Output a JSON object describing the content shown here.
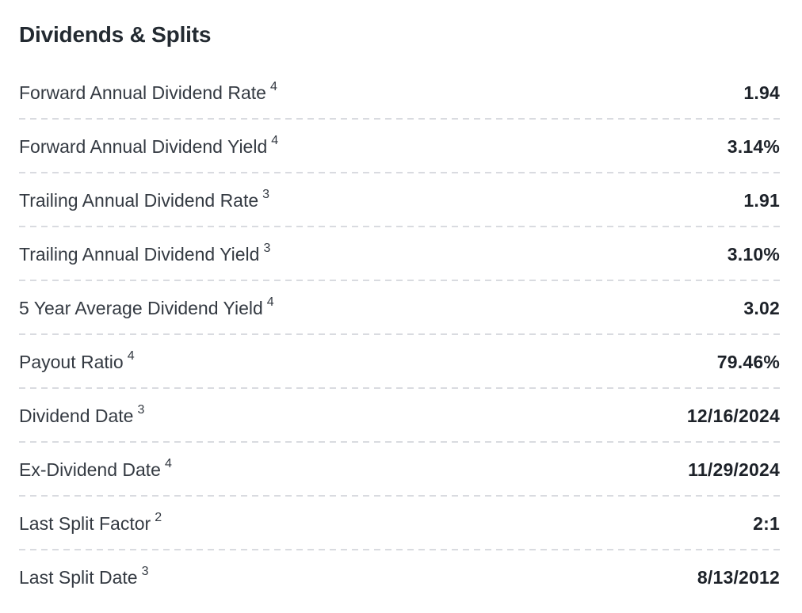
{
  "section": {
    "title": "Dividends & Splits",
    "rows": [
      {
        "label": "Forward Annual Dividend Rate",
        "footnote": "4",
        "value": "1.94"
      },
      {
        "label": "Forward Annual Dividend Yield",
        "footnote": "4",
        "value": "3.14%"
      },
      {
        "label": "Trailing Annual Dividend Rate",
        "footnote": "3",
        "value": "1.91"
      },
      {
        "label": "Trailing Annual Dividend Yield",
        "footnote": "3",
        "value": "3.10%"
      },
      {
        "label": "5 Year Average Dividend Yield",
        "footnote": "4",
        "value": "3.02"
      },
      {
        "label": "Payout Ratio",
        "footnote": "4",
        "value": "79.46%"
      },
      {
        "label": "Dividend Date",
        "footnote": "3",
        "value": "12/16/2024"
      },
      {
        "label": "Ex-Dividend Date",
        "footnote": "4",
        "value": "11/29/2024"
      },
      {
        "label": "Last Split Factor",
        "footnote": "2",
        "value": "2:1"
      },
      {
        "label": "Last Split Date",
        "footnote": "3",
        "value": "8/13/2012"
      }
    ],
    "divider_color": "#d9dbe0",
    "title_color": "#232a31",
    "label_color": "#343a42",
    "value_color": "#1d2229"
  }
}
